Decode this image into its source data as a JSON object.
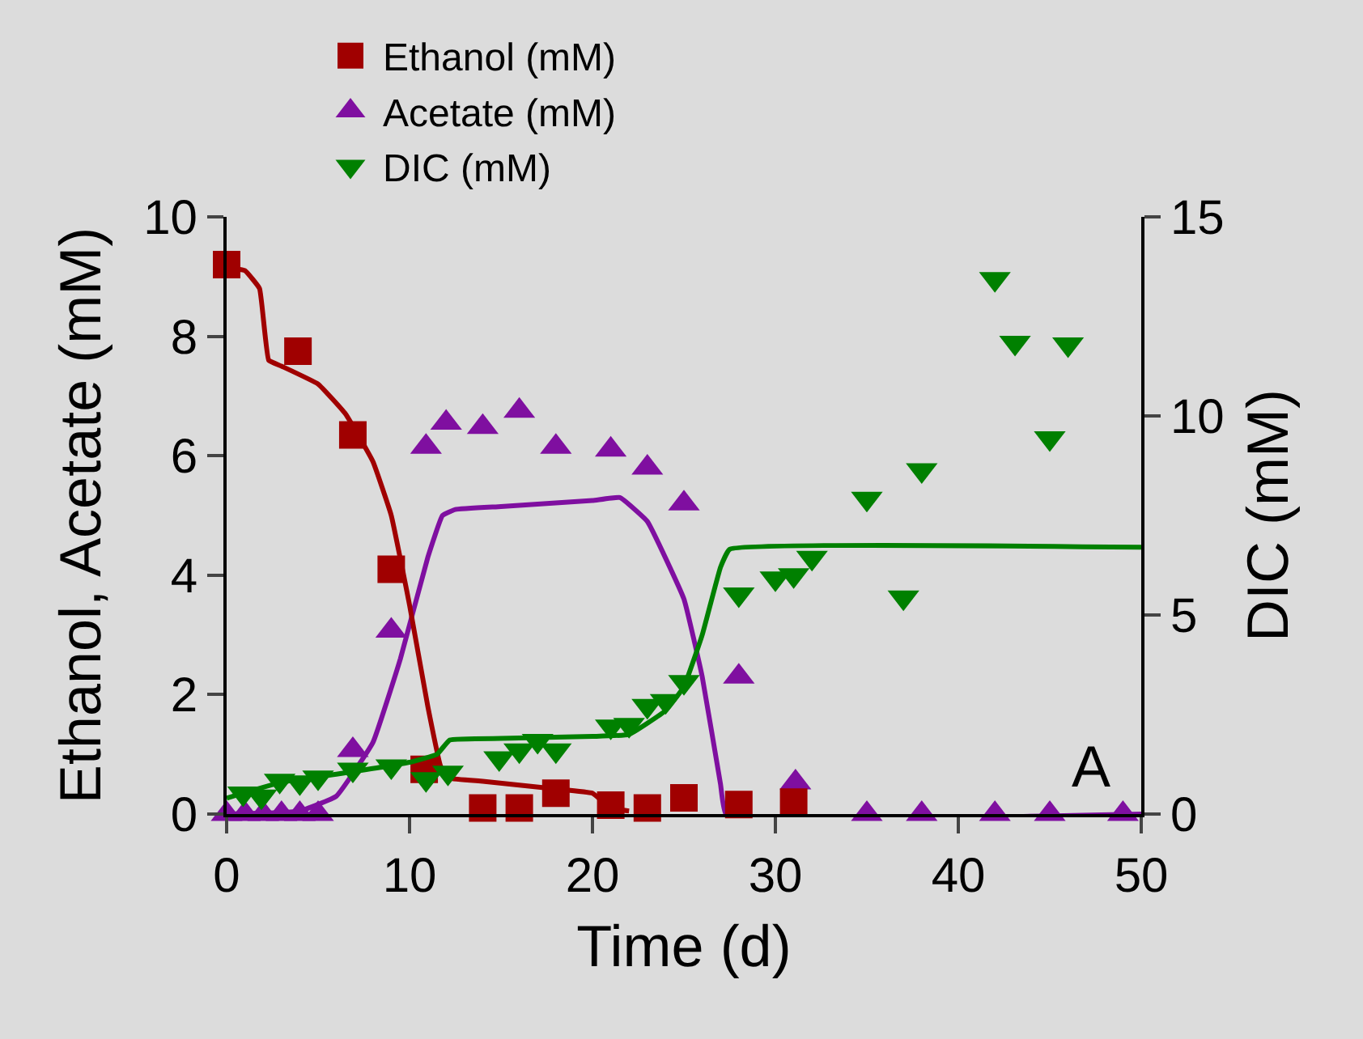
{
  "chart_data": {
    "type": "scatter",
    "xlabel": "Time (d)",
    "ylabel": "Ethanol, Acetate (mM)",
    "y2label": "DIC (mM)",
    "xlim": [
      0,
      50
    ],
    "xticks": [
      0,
      10,
      20,
      30,
      40,
      50
    ],
    "ylim": [
      0,
      10
    ],
    "yticks": [
      0,
      2,
      4,
      6,
      8,
      10
    ],
    "y2lim": [
      0,
      15
    ],
    "y2ticks": [
      0,
      5,
      10,
      15
    ],
    "grid": false,
    "legend": "top",
    "annotations": [
      "A"
    ],
    "series": [
      {
        "name": "Ethanol (mM)",
        "marker": "square",
        "color": "#a00000",
        "x": [
          0,
          3.9,
          6.9,
          9.0,
          10.8,
          14.0,
          16.0,
          18.0,
          21.0,
          23.0,
          25.0,
          28.0,
          31.0
        ],
        "values": [
          9.2,
          7.75,
          6.35,
          4.1,
          0.75,
          0.1,
          0.1,
          0.35,
          0.15,
          0.1,
          0.27,
          0.16,
          0.2
        ]
      },
      {
        "name": "Acetate (mM)",
        "marker": "triangle",
        "color": "#7f0fa0",
        "x": [
          0,
          1,
          2,
          3,
          4,
          5,
          6.9,
          9.0,
          10.9,
          12.0,
          14.0,
          16.0,
          18.0,
          21.0,
          23.0,
          25.0,
          28.0,
          31.1,
          35.0,
          38.0,
          42.0,
          45.0,
          49.0
        ],
        "values": [
          0,
          0,
          0,
          0,
          0,
          0,
          1.07,
          3.07,
          6.15,
          6.55,
          6.48,
          6.75,
          6.15,
          6.1,
          5.8,
          5.2,
          2.3,
          0.53,
          0,
          0,
          0,
          0,
          0
        ]
      },
      {
        "name": "DIC (mM)",
        "marker": "triangle-down",
        "axis": "y2",
        "color": "#008000",
        "x": [
          0.9,
          1.9,
          2.9,
          4.0,
          5.0,
          6.9,
          9.0,
          10.9,
          12.1,
          14.9,
          16.0,
          17.0,
          18.0,
          21.0,
          22.0,
          23.0,
          24.0,
          25.0,
          28.0,
          30.0,
          31.0,
          32.0,
          35.0,
          37.0,
          38.0,
          42.0,
          43.1,
          45.0,
          46.0
        ],
        "values": [
          0.52,
          0.44,
          0.84,
          0.8,
          0.92,
          1.12,
          1.2,
          0.88,
          1.04,
          1.4,
          1.6,
          1.84,
          1.6,
          2.2,
          2.24,
          2.72,
          2.84,
          3.32,
          5.52,
          5.92,
          6.0,
          6.44,
          7.92,
          5.44,
          8.64,
          13.44,
          11.84,
          9.44,
          11.8
        ]
      },
      {
        "type": "line",
        "line_style": "solid",
        "color": "#a00000",
        "x": [
          0,
          1,
          1.8,
          2.3,
          3,
          5,
          6.5,
          8,
          9,
          10,
          11,
          11.7,
          12.2,
          14,
          18,
          20,
          21,
          22
        ],
        "values": [
          9.15,
          9.1,
          8.8,
          7.6,
          7.5,
          7.2,
          6.7,
          5.9,
          5.0,
          3.5,
          1.8,
          0.8,
          0.6,
          0.55,
          0.42,
          0.35,
          0.1,
          0.05
        ]
      },
      {
        "type": "line",
        "line_style": "solid",
        "color": "#7f0fa0",
        "x": [
          0,
          4,
          6,
          8,
          9.5,
          11,
          11.8,
          12.5,
          15,
          20,
          21.5,
          23,
          25,
          26,
          27,
          27.3,
          50
        ],
        "values": [
          0,
          0.05,
          0.3,
          1.2,
          2.6,
          4.3,
          5.0,
          5.1,
          5.15,
          5.25,
          5.3,
          4.9,
          3.6,
          2.3,
          0.5,
          0,
          0
        ]
      },
      {
        "type": "line",
        "line_style": "solid",
        "axis": "y2",
        "color": "#008000",
        "x": [
          0,
          3,
          6,
          10,
          11.5,
          12.2,
          15,
          20,
          22,
          24,
          25,
          26,
          27,
          27.5,
          50
        ],
        "values": [
          0.4,
          0.8,
          1.0,
          1.3,
          1.5,
          1.86,
          1.9,
          1.95,
          2.0,
          2.6,
          3.2,
          4.5,
          6.2,
          6.65,
          6.7
        ]
      }
    ]
  }
}
